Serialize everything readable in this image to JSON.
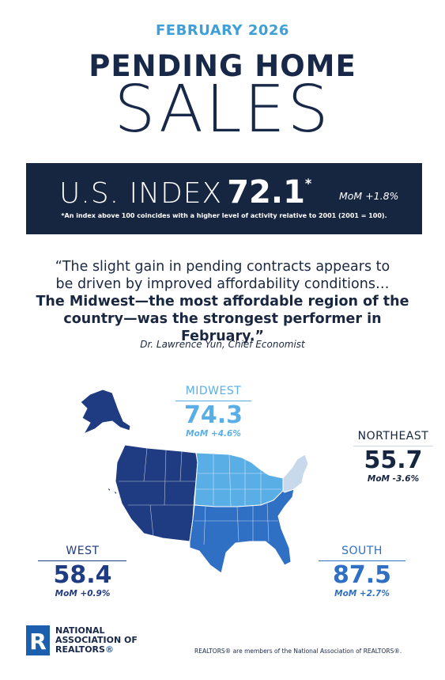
{
  "header": {
    "month": "FEBRUARY 2026",
    "title_line1": "PENDING HOME",
    "title_line2": "SALES"
  },
  "index": {
    "label": "U.S. INDEX",
    "value": "72.1",
    "asterisk": "*",
    "mom": "MoM +1.8%",
    "note": "*An index above 100 coincides with a higher level of activity relative to 2001 (2001 = 100)."
  },
  "quote": {
    "line1": "“The slight gain in pending contracts appears to",
    "line2": "be driven by improved affordability conditions…",
    "line3": "The Midwest—the most affordable region of the",
    "line4": "country—was the strongest performer in February.”",
    "attribution": "Dr. Lawrence Yun, Chief Economist"
  },
  "regions": {
    "midwest": {
      "name": "MIDWEST",
      "value": "74.3",
      "mom": "MoM +4.6%",
      "color": "#5aaee6"
    },
    "northeast": {
      "name": "NORTHEAST",
      "value": "55.7",
      "mom": "MoM -3.6%",
      "color": "#c7d9ea"
    },
    "west": {
      "name": "WEST",
      "value": "58.4",
      "mom": "MoM +0.9%",
      "color": "#1f3b82"
    },
    "south": {
      "name": "SOUTH",
      "value": "87.5",
      "mom": "MoM +2.7%",
      "color": "#2f6fc4"
    }
  },
  "logo": {
    "letter": "R",
    "line1": "NATIONAL",
    "line2": "ASSOCIATION OF",
    "line3": "REALTORS",
    "reg": "®"
  },
  "footer": {
    "text": "REALTORS® are members of the National Association of REALTORS®."
  },
  "colors": {
    "navy": "#172640",
    "accent_blue": "#3f9fd8",
    "nar_blue": "#1b5fae"
  }
}
